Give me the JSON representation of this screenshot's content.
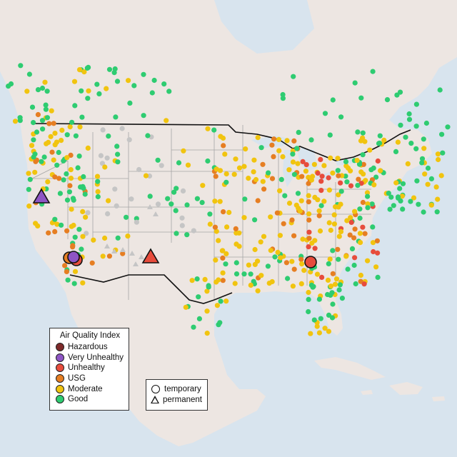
{
  "legend_aqi": {
    "title": "Air Quality Index",
    "items": [
      {
        "label": "Hazardous",
        "color": "#7e2a2a"
      },
      {
        "label": "Very Unhealthy",
        "color": "#8e55c4"
      },
      {
        "label": "Unhealthy",
        "color": "#e74c3c"
      },
      {
        "label": "USG",
        "color": "#e67e22"
      },
      {
        "label": "Moderate",
        "color": "#f1c40f"
      },
      {
        "label": "Good",
        "color": "#2ecc71"
      }
    ]
  },
  "legend_type": {
    "items": [
      {
        "label": "temporary",
        "shape": "circle"
      },
      {
        "label": "permanent",
        "shape": "triangle"
      }
    ]
  },
  "colors": {
    "ocean": "#d8e4ee",
    "land": "#ede6e2",
    "state_border": "#9a9a9a",
    "country_border": "#111111",
    "no_data": "#c5c5c5"
  }
}
